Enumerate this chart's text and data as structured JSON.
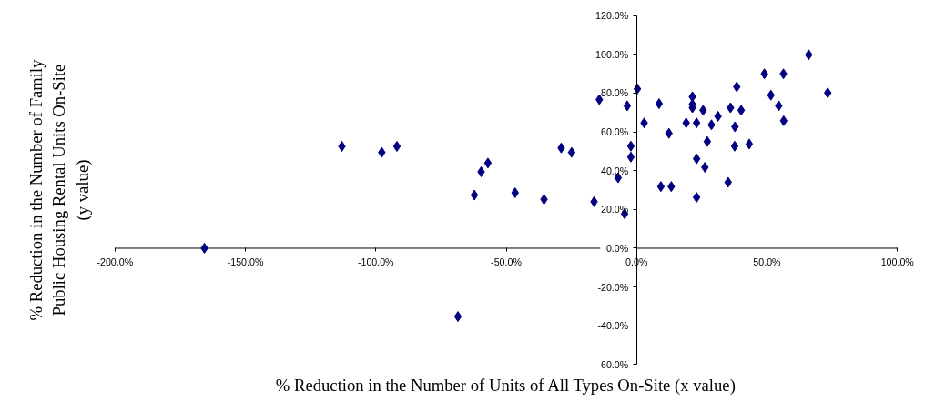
{
  "chart_data": {
    "type": "scatter",
    "xlabel": "% Reduction in the Number of Units of All Types On-Site (x value)",
    "ylabel": "% Reduction in the Number of Family Public Housing Rental Units On-Site (y value)",
    "x": [
      -165.7,
      -113.0,
      -97.7,
      -91.9,
      -68.5,
      -62.2,
      -59.6,
      -57.0,
      -46.6,
      -35.5,
      -28.9,
      -24.9,
      -16.3,
      -14.3,
      -7.1,
      -4.6,
      -3.6,
      -2.2,
      -2.2,
      0.3,
      2.9,
      8.6,
      9.3,
      12.4,
      13.3,
      19.0,
      21.4,
      21.4,
      21.4,
      23.0,
      23.0,
      23.0,
      25.5,
      26.2,
      27.1,
      28.7,
      31.2,
      35.1,
      36.0,
      37.6,
      37.7,
      38.4,
      40.1,
      43.2,
      49.0,
      51.5,
      54.5,
      56.3,
      56.4,
      66.0,
      73.3
    ],
    "values": [
      0,
      52.5,
      49.4,
      52.5,
      -35.2,
      27.4,
      39.4,
      43.9,
      28.6,
      25.2,
      51.7,
      49.4,
      24.0,
      76.6,
      36.3,
      17.7,
      73.4,
      52.6,
      47.0,
      82.1,
      64.6,
      74.5,
      31.8,
      59.2,
      31.8,
      64.6,
      78.1,
      74.2,
      72.4,
      64.6,
      46.1,
      26.2,
      71.1,
      41.7,
      55.0,
      63.6,
      68.0,
      34.0,
      72.4,
      52.6,
      62.6,
      83.2,
      71.1,
      53.7,
      89.9,
      78.9,
      73.4,
      89.9,
      65.7,
      99.7,
      80.1
    ],
    "color": "#000080",
    "marker": "diamond",
    "xlim": [
      -200,
      100
    ],
    "ylim": [
      -60,
      120
    ],
    "xticks": [
      {
        "value": -200,
        "label": "-200.0%"
      },
      {
        "value": -150,
        "label": "-150.0%"
      },
      {
        "value": -100,
        "label": "-100.0%"
      },
      {
        "value": -50,
        "label": "-50.0%"
      },
      {
        "value": 0,
        "label": "0.0%"
      },
      {
        "value": 50,
        "label": "50.0%"
      },
      {
        "value": 100,
        "label": "100.0%"
      }
    ],
    "yticks": [
      {
        "value": -60,
        "label": "-60.0%"
      },
      {
        "value": -40,
        "label": "-40.0%"
      },
      {
        "value": -20,
        "label": "-20.0%"
      },
      {
        "value": 0,
        "label": "0.0%"
      },
      {
        "value": 20,
        "label": "20.0%"
      },
      {
        "value": 40,
        "label": "40.0%"
      },
      {
        "value": 60,
        "label": "60.0%"
      },
      {
        "value": 80,
        "label": "80.0%"
      },
      {
        "value": 100,
        "label": "100.0%"
      },
      {
        "value": 120,
        "label": "120.0%"
      }
    ]
  }
}
